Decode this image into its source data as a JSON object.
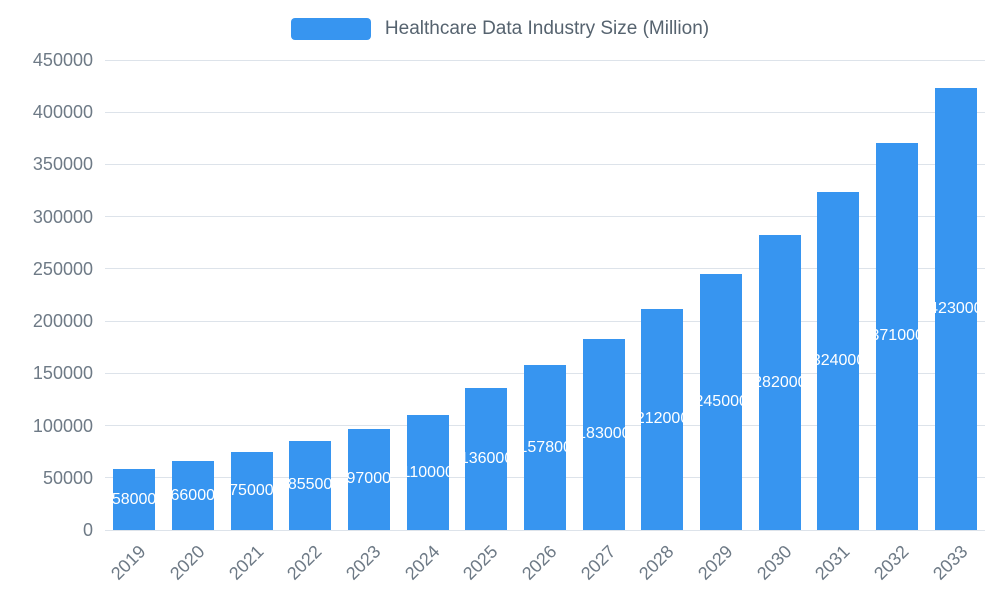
{
  "legend": {
    "label": "Healthcare Data Industry Size (Million)"
  },
  "chart_data": {
    "type": "bar",
    "title": "Healthcare Data Industry Size (Million)",
    "categories": [
      "2019",
      "2020",
      "2021",
      "2022",
      "2023",
      "2024",
      "2025",
      "2026",
      "2027",
      "2028",
      "2029",
      "2030",
      "2031",
      "2032",
      "2033"
    ],
    "values": [
      58000,
      66000,
      75000,
      85500,
      97000,
      110000,
      136000,
      157800,
      183000,
      212000,
      245000,
      282000,
      324000,
      371000,
      423000
    ],
    "xlabel": "",
    "ylabel": "",
    "ylim": [
      0,
      450000
    ],
    "ytick_step": 50000,
    "ytick_labels": [
      "0",
      "50000",
      "100000",
      "150000",
      "200000",
      "250000",
      "300000",
      "350000",
      "400000",
      "450000"
    ],
    "grid": true,
    "legend_position": "top-center",
    "bar_color": "#3795f0",
    "gridline_color": "#dde3ea",
    "value_label_color": "#ffffff",
    "axis_label_color": "#6e7a86"
  }
}
